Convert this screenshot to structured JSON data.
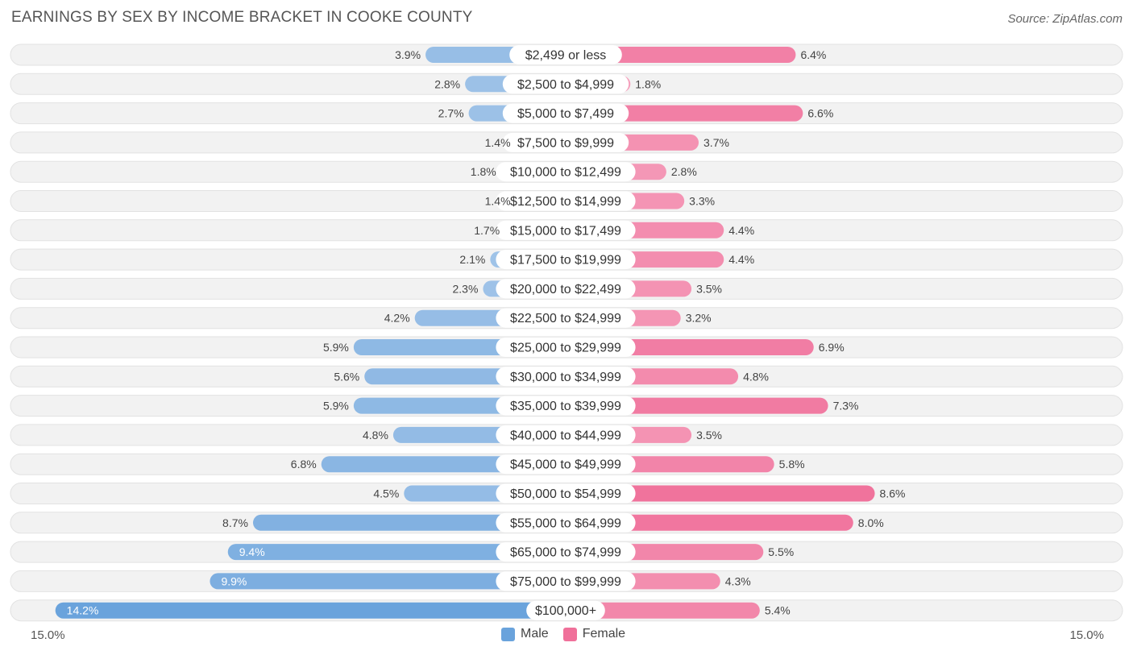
{
  "title": "EARNINGS BY SEX BY INCOME BRACKET IN COOKE COUNTY",
  "source": "Source: ZipAtlas.com",
  "axis": {
    "left_label": "15.0%",
    "right_label": "15.0%"
  },
  "legend": {
    "male": "Male",
    "female": "Female"
  },
  "colors": {
    "male": "#6aa3dc",
    "male_light": "#a8c8ea",
    "female": "#f0709a",
    "female_light": "#f6a9c3"
  },
  "chart_data": {
    "type": "bar",
    "orientation": "horizontal-diverging",
    "title": "EARNINGS BY SEX BY INCOME BRACKET IN COOKE COUNTY",
    "xlim": [
      -15,
      15
    ],
    "categories": [
      "$2,499 or less",
      "$2,500 to $4,999",
      "$5,000 to $7,499",
      "$7,500 to $9,999",
      "$10,000 to $12,499",
      "$12,500 to $14,999",
      "$15,000 to $17,499",
      "$17,500 to $19,999",
      "$20,000 to $22,499",
      "$22,500 to $24,999",
      "$25,000 to $29,999",
      "$30,000 to $34,999",
      "$35,000 to $39,999",
      "$40,000 to $44,999",
      "$45,000 to $49,999",
      "$50,000 to $54,999",
      "$55,000 to $64,999",
      "$65,000 to $74,999",
      "$75,000 to $99,999",
      "$100,000+"
    ],
    "series": [
      {
        "name": "Male",
        "values": [
          3.9,
          2.8,
          2.7,
          1.4,
          1.8,
          1.4,
          1.7,
          2.1,
          2.3,
          4.2,
          5.9,
          5.6,
          5.9,
          4.8,
          6.8,
          4.5,
          8.7,
          9.4,
          9.9,
          14.2
        ],
        "labels": [
          "3.9%",
          "2.8%",
          "2.7%",
          "1.4%",
          "1.8%",
          "1.4%",
          "1.7%",
          "2.1%",
          "2.3%",
          "4.2%",
          "5.9%",
          "5.6%",
          "5.9%",
          "4.8%",
          "6.8%",
          "4.5%",
          "8.7%",
          "9.4%",
          "9.9%",
          "14.2%"
        ]
      },
      {
        "name": "Female",
        "values": [
          6.4,
          1.8,
          6.6,
          3.7,
          2.8,
          3.3,
          4.4,
          4.4,
          3.5,
          3.2,
          6.9,
          4.8,
          7.3,
          3.5,
          5.8,
          8.6,
          8.0,
          5.5,
          4.3,
          5.4
        ],
        "labels": [
          "6.4%",
          "1.8%",
          "6.6%",
          "3.7%",
          "2.8%",
          "3.3%",
          "4.4%",
          "4.4%",
          "3.5%",
          "3.2%",
          "6.9%",
          "4.8%",
          "7.3%",
          "3.5%",
          "5.8%",
          "8.6%",
          "8.0%",
          "5.5%",
          "4.3%",
          "5.4%"
        ]
      }
    ],
    "legend_position": "bottom-center"
  }
}
